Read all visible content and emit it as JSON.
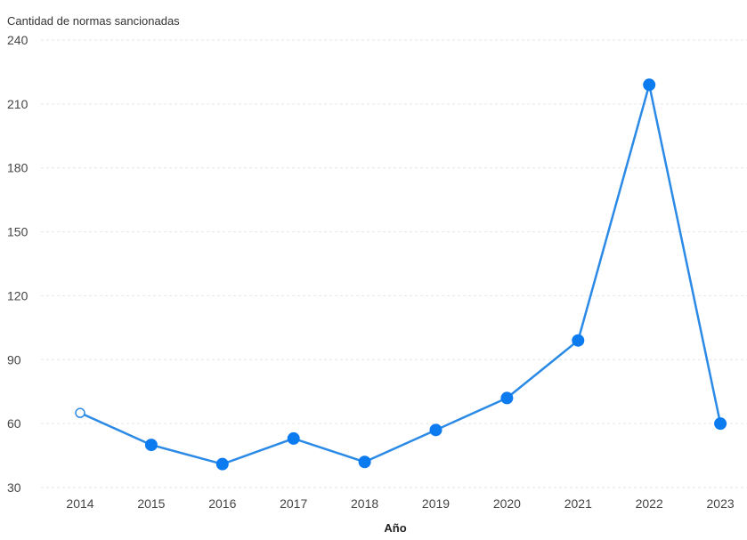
{
  "chart_data": {
    "type": "line",
    "title": "",
    "ylabel": "Cantidad de normas sancionadas",
    "xlabel": "Año",
    "categories": [
      "2014",
      "2015",
      "2016",
      "2017",
      "2018",
      "2019",
      "2020",
      "2021",
      "2022",
      "2023"
    ],
    "series": [
      {
        "values": [
          65,
          50,
          41,
          53,
          42,
          57,
          72,
          99,
          219,
          60
        ]
      }
    ],
    "yticks": [
      30,
      60,
      90,
      120,
      150,
      180,
      210,
      240
    ],
    "ylim": [
      30,
      240
    ],
    "grid": true,
    "colors": {
      "line": "#2b8ae6",
      "marker": "#0d7bf0",
      "hollow_marker_fill": "#ffffff"
    },
    "hollow_first_point": true
  }
}
